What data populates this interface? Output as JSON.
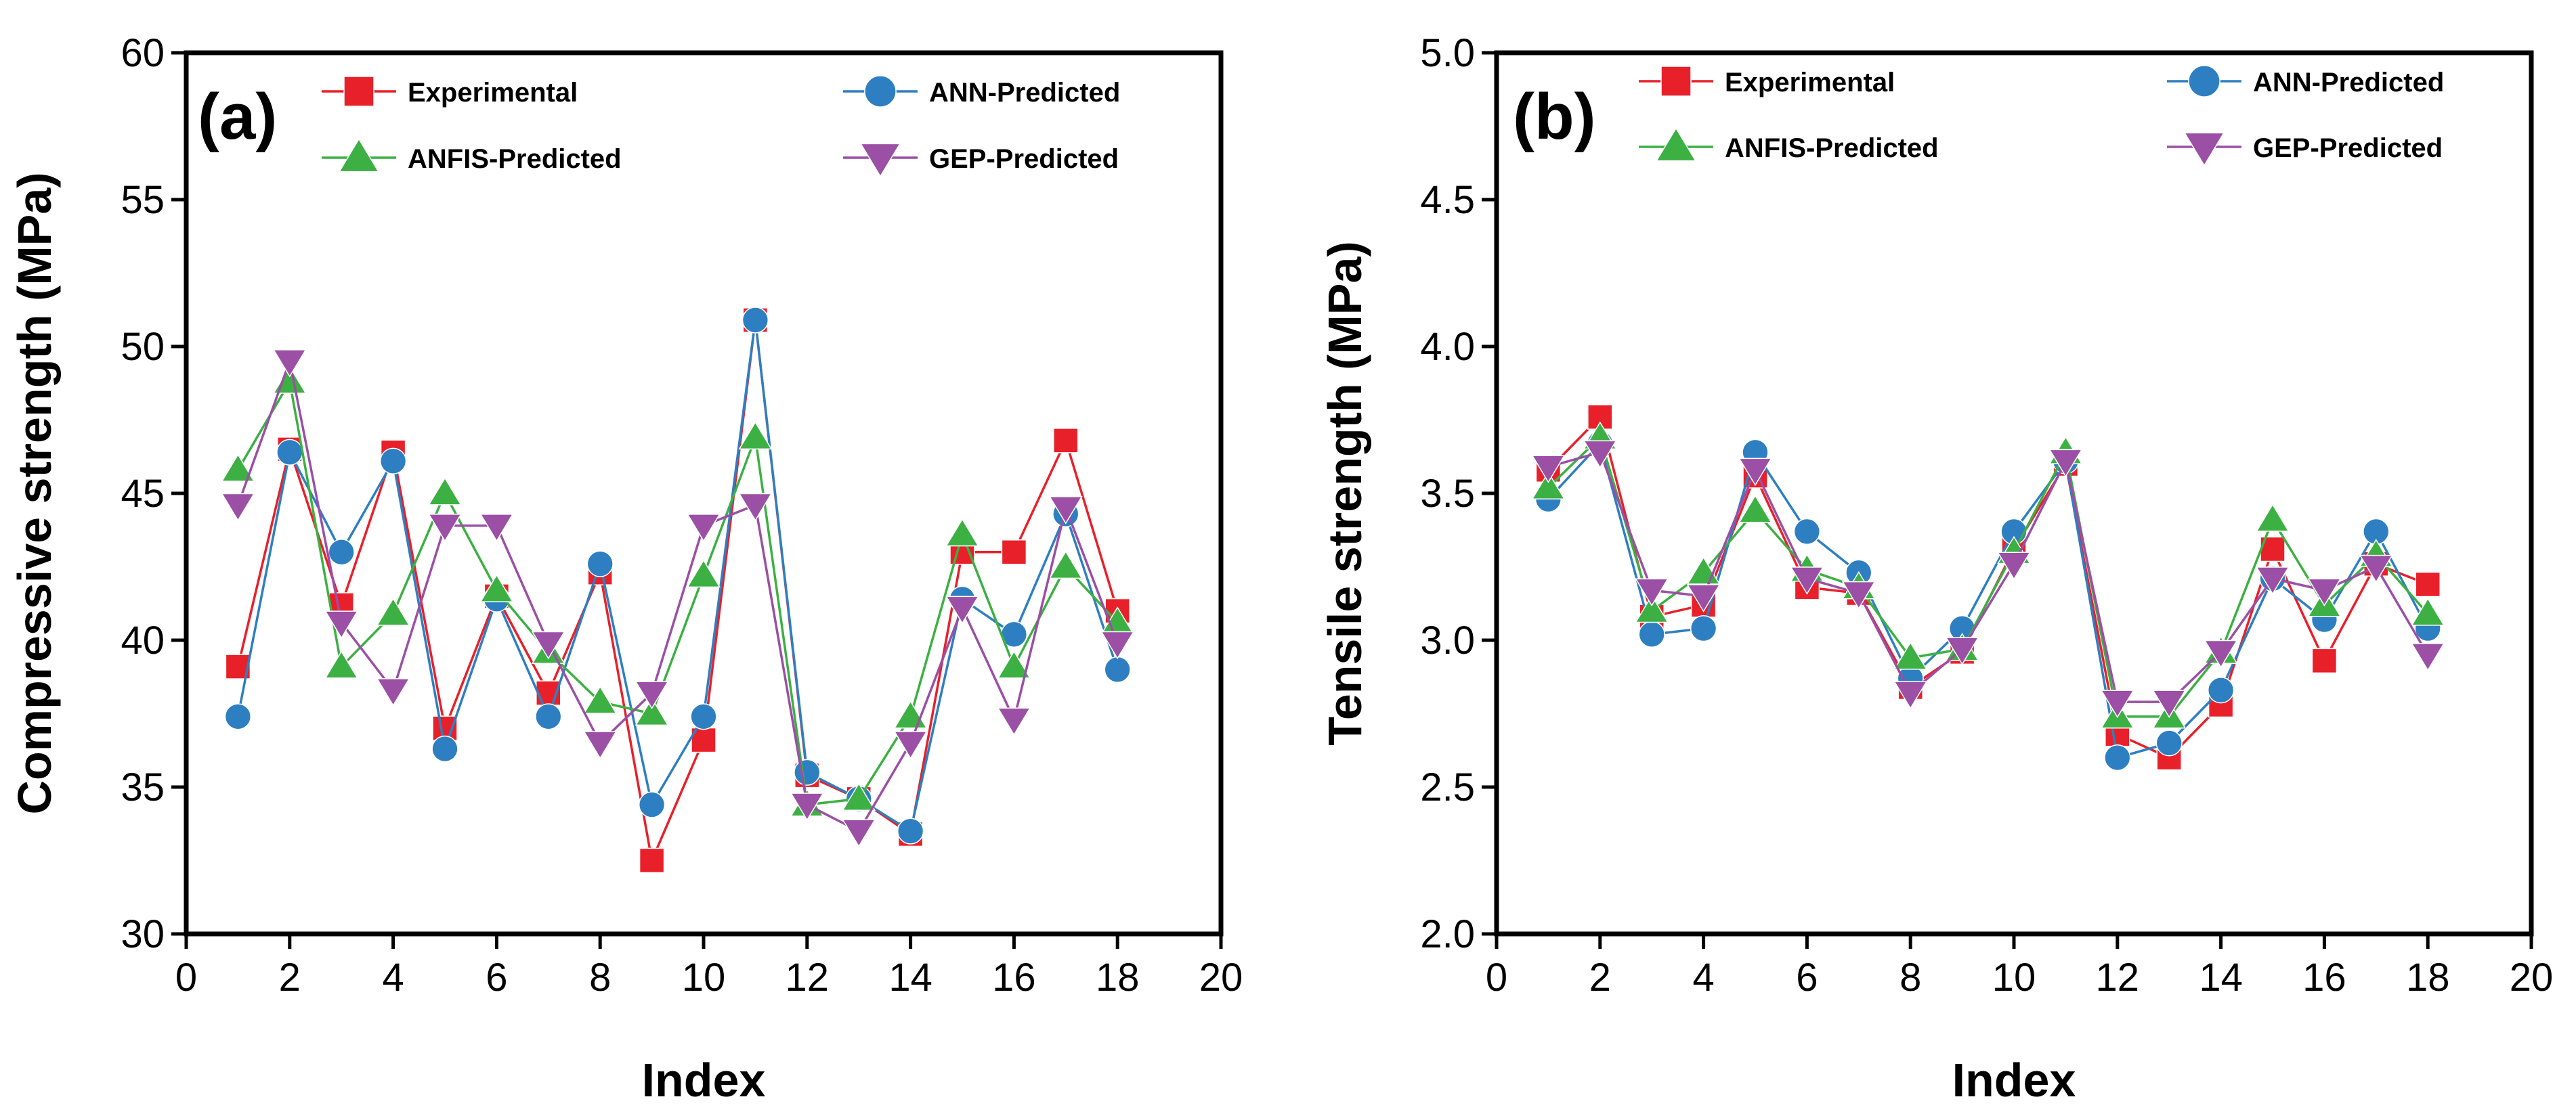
{
  "chart_data": [
    {
      "type": "line",
      "panel_label": "(a)",
      "xlabel": "Index",
      "ylabel": "Compressive strength (MPa)",
      "xlim": [
        0,
        20
      ],
      "ylim": [
        30,
        60
      ],
      "x_ticks": [
        0,
        2,
        4,
        6,
        8,
        10,
        12,
        14,
        16,
        18,
        20
      ],
      "y_ticks": [
        30,
        35,
        40,
        45,
        50,
        55,
        60
      ],
      "x_tick_labels": [
        "0",
        "2",
        "4",
        "6",
        "8",
        "10",
        "12",
        "14",
        "16",
        "18",
        "20"
      ],
      "y_tick_labels": [
        "30",
        "35",
        "40",
        "45",
        "50",
        "55",
        "60"
      ],
      "grid": false,
      "legend_position": "top",
      "x": [
        1,
        2,
        3,
        4,
        5,
        6,
        7,
        8,
        9,
        10,
        11,
        12,
        13,
        14,
        15,
        16,
        17,
        18
      ],
      "series": [
        {
          "name": "Experimental",
          "color": "#e8202a",
          "marker": "square",
          "values": [
            39.1,
            46.5,
            41.2,
            46.4,
            37.0,
            41.5,
            38.2,
            42.3,
            32.5,
            36.6,
            50.9,
            35.4,
            34.6,
            33.4,
            43.0,
            43.0,
            46.8,
            41.0
          ]
        },
        {
          "name": "ANN-Predicted",
          "color": "#2e7fc1",
          "marker": "circle",
          "values": [
            37.4,
            46.4,
            43.0,
            46.1,
            36.3,
            41.4,
            37.4,
            42.6,
            34.4,
            37.4,
            50.9,
            35.5,
            34.6,
            33.5,
            41.4,
            40.2,
            44.3,
            39.0
          ]
        },
        {
          "name": "ANFIS-Predicted",
          "color": "#3cb043",
          "marker": "triangle-up",
          "values": [
            45.8,
            48.8,
            39.1,
            40.9,
            45.0,
            41.7,
            39.6,
            37.9,
            37.5,
            42.2,
            46.9,
            34.4,
            34.6,
            37.4,
            43.6,
            39.1,
            42.5,
            40.6
          ]
        },
        {
          "name": "GEP-Predicted",
          "color": "#9b4fa5",
          "marker": "triangle-down",
          "values": [
            44.6,
            49.5,
            40.6,
            38.3,
            43.9,
            43.9,
            39.9,
            36.5,
            38.2,
            43.9,
            44.6,
            34.4,
            33.5,
            36.5,
            41.1,
            37.3,
            44.5,
            39.9
          ]
        }
      ]
    },
    {
      "type": "line",
      "panel_label": "(b)",
      "xlabel": "Index",
      "ylabel": "Tensile strength (MPa)",
      "xlim": [
        0,
        20
      ],
      "ylim": [
        2.0,
        5.0
      ],
      "x_ticks": [
        0,
        2,
        4,
        6,
        8,
        10,
        12,
        14,
        16,
        18,
        20
      ],
      "y_ticks": [
        2.0,
        2.5,
        3.0,
        3.5,
        4.0,
        4.5,
        5.0
      ],
      "x_tick_labels": [
        "0",
        "2",
        "4",
        "6",
        "8",
        "10",
        "12",
        "14",
        "16",
        "18",
        "20"
      ],
      "y_tick_labels": [
        "2.0",
        "2.5",
        "3.0",
        "3.5",
        "4.0",
        "4.5",
        "5.0"
      ],
      "grid": false,
      "legend_position": "top",
      "x": [
        1,
        2,
        3,
        4,
        5,
        6,
        7,
        8,
        9,
        10,
        11,
        12,
        13,
        14,
        15,
        16,
        17,
        18
      ],
      "series": [
        {
          "name": "Experimental",
          "color": "#e8202a",
          "marker": "square",
          "values": [
            3.58,
            3.76,
            3.08,
            3.12,
            3.56,
            3.18,
            3.16,
            2.84,
            2.96,
            3.31,
            3.6,
            2.68,
            2.6,
            2.78,
            3.31,
            2.93,
            3.26,
            3.19
          ]
        },
        {
          "name": "ANN-Predicted",
          "color": "#2e7fc1",
          "marker": "circle",
          "values": [
            3.48,
            3.67,
            3.02,
            3.04,
            3.64,
            3.37,
            3.23,
            2.87,
            3.04,
            3.37,
            3.61,
            2.6,
            2.65,
            2.83,
            3.21,
            3.07,
            3.37,
            3.04
          ]
        },
        {
          "name": "ANFIS-Predicted",
          "color": "#3cb043",
          "marker": "triangle-up",
          "values": [
            3.52,
            3.69,
            3.1,
            3.23,
            3.44,
            3.24,
            3.18,
            2.94,
            2.97,
            3.3,
            3.64,
            2.74,
            2.74,
            2.96,
            3.41,
            3.12,
            3.29,
            3.09
          ]
        },
        {
          "name": "GEP-Predicted",
          "color": "#9b4fa5",
          "marker": "triangle-down",
          "values": [
            3.59,
            3.64,
            3.17,
            3.15,
            3.58,
            3.21,
            3.16,
            2.82,
            2.97,
            3.26,
            3.61,
            2.79,
            2.79,
            2.96,
            3.21,
            3.17,
            3.25,
            2.95
          ]
        }
      ]
    }
  ]
}
